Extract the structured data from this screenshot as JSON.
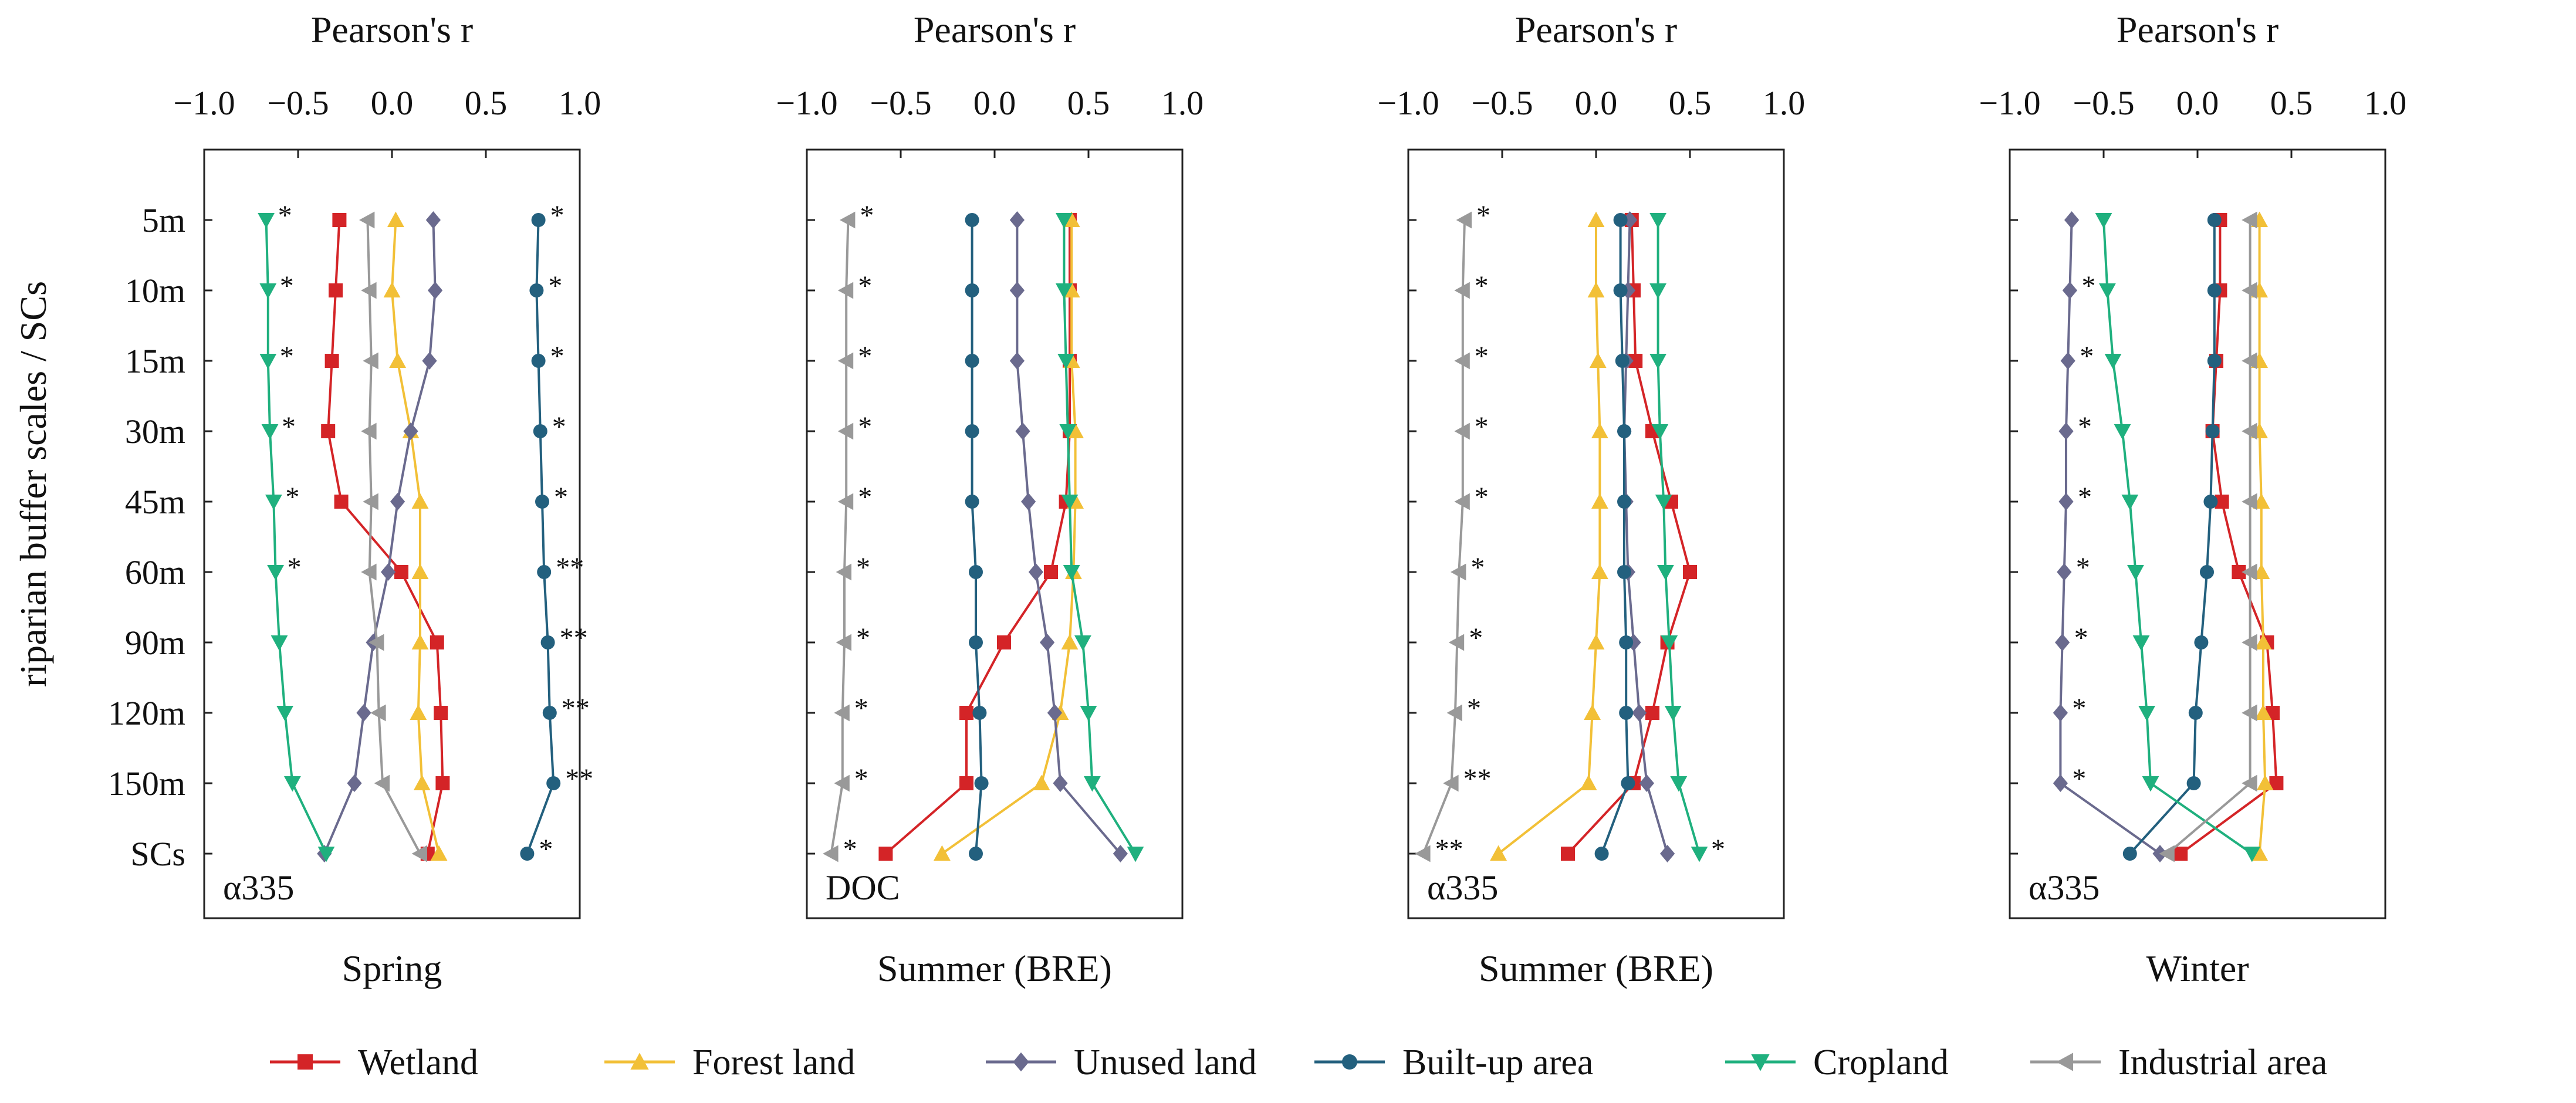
{
  "figure": {
    "y_axis_label": "riparian buffer scales / SCs",
    "scales": [
      "5m",
      "10m",
      "15m",
      "30m",
      "45m",
      "60m",
      "90m",
      "120m",
      "150m",
      "SCs"
    ],
    "x_axis_title": "Pearson's r",
    "x_ticks": [
      -1.0,
      -0.5,
      0.0,
      0.5,
      1.0
    ],
    "x_tick_labels": [
      "−1.0",
      "−0.5",
      "0.0",
      "0.5",
      "1.0"
    ]
  },
  "legend": [
    {
      "name": "Wetland",
      "color": "#d42427",
      "marker": "square"
    },
    {
      "name": "Forest land",
      "color": "#f2c037",
      "marker": "triangle-up"
    },
    {
      "name": "Unused land",
      "color": "#6a6a8e",
      "marker": "diamond"
    },
    {
      "name": "Built-up area",
      "color": "#23607e",
      "marker": "circle"
    },
    {
      "name": "Cropland",
      "color": "#1fb07e",
      "marker": "triangle-down"
    },
    {
      "name": "Industrial area",
      "color": "#999999",
      "marker": "triangle-left"
    }
  ],
  "chart_data": [
    {
      "type": "line",
      "title": "Pearson's r",
      "caption": "Spring",
      "panel_label": "α335",
      "xlabel": "Pearson's r",
      "ylabel": "riparian buffer scales / SCs",
      "xlim": [
        -1.0,
        1.0
      ],
      "y_categories": [
        "5m",
        "10m",
        "15m",
        "30m",
        "45m",
        "60m",
        "90m",
        "120m",
        "150m",
        "SCs"
      ],
      "series": [
        {
          "name": "Wetland",
          "values": [
            -0.28,
            -0.3,
            -0.32,
            -0.34,
            -0.27,
            0.05,
            0.24,
            0.26,
            0.27,
            0.19
          ],
          "stars": [
            "",
            "",
            "",
            "",
            "",
            "",
            "",
            "",
            "",
            ""
          ]
        },
        {
          "name": "Forest land",
          "values": [
            0.02,
            0.0,
            0.03,
            0.1,
            0.15,
            0.15,
            0.15,
            0.14,
            0.16,
            0.25
          ],
          "stars": [
            "",
            "",
            "",
            "",
            "",
            "",
            "",
            "",
            "",
            ""
          ]
        },
        {
          "name": "Unused land",
          "values": [
            0.22,
            0.23,
            0.2,
            0.1,
            0.03,
            -0.02,
            -0.1,
            -0.15,
            -0.2,
            -0.36
          ],
          "stars": [
            "",
            "",
            "",
            "",
            "",
            "",
            "",
            "",
            "",
            ""
          ]
        },
        {
          "name": "Built-up area",
          "values": [
            0.78,
            0.77,
            0.78,
            0.79,
            0.8,
            0.81,
            0.83,
            0.84,
            0.86,
            0.72
          ],
          "stars": [
            "*",
            "*",
            "*",
            "*",
            "*",
            "**",
            "**",
            "**",
            "**",
            "*"
          ]
        },
        {
          "name": "Cropland",
          "values": [
            -0.67,
            -0.66,
            -0.66,
            -0.65,
            -0.63,
            -0.62,
            -0.6,
            -0.57,
            -0.53,
            -0.35
          ],
          "stars": [
            "*",
            "*",
            "*",
            "*",
            "*",
            "*",
            "",
            "",
            "",
            ""
          ]
        },
        {
          "name": "Industrial area",
          "values": [
            -0.13,
            -0.12,
            -0.11,
            -0.12,
            -0.11,
            -0.12,
            -0.08,
            -0.07,
            -0.05,
            0.15
          ],
          "stars": [
            "",
            "",
            "",
            "",
            "",
            "",
            "",
            "",
            "",
            ""
          ]
        }
      ]
    },
    {
      "type": "line",
      "title": "Pearson's r",
      "caption": "Summer (BRE)",
      "panel_label": "DOC",
      "xlabel": "Pearson's r",
      "ylabel": "riparian buffer scales / SCs",
      "xlim": [
        -1.0,
        1.0
      ],
      "y_categories": [
        "5m",
        "10m",
        "15m",
        "30m",
        "45m",
        "60m",
        "90m",
        "120m",
        "150m",
        "SCs"
      ],
      "series": [
        {
          "name": "Wetland",
          "values": [
            0.4,
            0.4,
            0.4,
            0.4,
            0.38,
            0.3,
            0.05,
            -0.15,
            -0.15,
            -0.58
          ],
          "stars": [
            "",
            "",
            "",
            "",
            "",
            "",
            "",
            "",
            "",
            ""
          ]
        },
        {
          "name": "Forest land",
          "values": [
            0.41,
            0.41,
            0.41,
            0.43,
            0.43,
            0.42,
            0.4,
            0.35,
            0.25,
            -0.28
          ],
          "stars": [
            "",
            "",
            "",
            "",
            "",
            "",
            "",
            "",
            "",
            ""
          ]
        },
        {
          "name": "Unused land",
          "values": [
            0.12,
            0.12,
            0.12,
            0.15,
            0.18,
            0.22,
            0.28,
            0.32,
            0.35,
            0.67
          ],
          "stars": [
            "",
            "",
            "",
            "",
            "",
            "",
            "",
            "",
            "",
            ""
          ]
        },
        {
          "name": "Built-up area",
          "values": [
            -0.12,
            -0.12,
            -0.12,
            -0.12,
            -0.12,
            -0.1,
            -0.1,
            -0.08,
            -0.07,
            -0.1
          ],
          "stars": [
            "",
            "",
            "",
            "",
            "",
            "",
            "",
            "",
            "",
            ""
          ]
        },
        {
          "name": "Cropland",
          "values": [
            0.37,
            0.37,
            0.38,
            0.39,
            0.4,
            0.41,
            0.47,
            0.5,
            0.52,
            0.75
          ],
          "stars": [
            "",
            "",
            "",
            "",
            "",
            "",
            "",
            "",
            "",
            ""
          ]
        },
        {
          "name": "Industrial area",
          "values": [
            -0.78,
            -0.79,
            -0.79,
            -0.79,
            -0.79,
            -0.8,
            -0.8,
            -0.81,
            -0.81,
            -0.87
          ],
          "stars": [
            "*",
            "*",
            "*",
            "*",
            "*",
            "*",
            "*",
            "*",
            "*",
            "*"
          ]
        }
      ]
    },
    {
      "type": "line",
      "title": "Pearson's r",
      "caption": "Summer (BRE)",
      "panel_label": "α335",
      "xlabel": "Pearson's r",
      "ylabel": "riparian buffer scales / SCs",
      "xlim": [
        -1.0,
        1.0
      ],
      "y_categories": [
        "5m",
        "10m",
        "15m",
        "30m",
        "45m",
        "60m",
        "90m",
        "120m",
        "150m",
        "SCs"
      ],
      "series": [
        {
          "name": "Wetland",
          "values": [
            0.19,
            0.2,
            0.21,
            0.3,
            0.4,
            0.5,
            0.38,
            0.3,
            0.2,
            -0.15
          ],
          "stars": [
            "",
            "",
            "",
            "",
            "",
            "",
            "",
            "",
            "",
            ""
          ]
        },
        {
          "name": "Forest land",
          "values": [
            0.0,
            0.0,
            0.01,
            0.02,
            0.02,
            0.02,
            0.0,
            -0.02,
            -0.04,
            -0.52
          ],
          "stars": [
            "",
            "",
            "",
            "",
            "",
            "",
            "",
            "",
            "",
            ""
          ]
        },
        {
          "name": "Unused land",
          "values": [
            0.18,
            0.17,
            0.16,
            0.15,
            0.16,
            0.17,
            0.2,
            0.23,
            0.27,
            0.38
          ],
          "stars": [
            "",
            "",
            "",
            "",
            "",
            "",
            "",
            "",
            "",
            ""
          ]
        },
        {
          "name": "Built-up area",
          "values": [
            0.13,
            0.13,
            0.14,
            0.15,
            0.15,
            0.15,
            0.16,
            0.16,
            0.17,
            0.03
          ],
          "stars": [
            "",
            "",
            "",
            "",
            "",
            "",
            "",
            "",
            "",
            ""
          ]
        },
        {
          "name": "Cropland",
          "values": [
            0.33,
            0.33,
            0.33,
            0.34,
            0.36,
            0.37,
            0.39,
            0.41,
            0.44,
            0.55
          ],
          "stars": [
            "",
            "",
            "",
            "",
            "",
            "",
            "",
            "",
            "",
            "*"
          ]
        },
        {
          "name": "Industrial area",
          "values": [
            -0.7,
            -0.71,
            -0.71,
            -0.71,
            -0.71,
            -0.73,
            -0.74,
            -0.75,
            -0.77,
            -0.92
          ],
          "stars": [
            "*",
            "*",
            "*",
            "*",
            "*",
            "*",
            "*",
            "*",
            "**",
            "**"
          ]
        }
      ]
    },
    {
      "type": "line",
      "title": "Pearson's r",
      "caption": "Winter",
      "panel_label": "α335",
      "xlabel": "Pearson's r",
      "ylabel": "riparian buffer scales / SCs",
      "xlim": [
        -1.0,
        1.0
      ],
      "y_categories": [
        "5m",
        "10m",
        "15m",
        "30m",
        "45m",
        "60m",
        "90m",
        "120m",
        "150m",
        "SCs"
      ],
      "series": [
        {
          "name": "Wetland",
          "values": [
            0.12,
            0.12,
            0.1,
            0.08,
            0.13,
            0.22,
            0.37,
            0.4,
            0.42,
            -0.09
          ],
          "stars": [
            "",
            "",
            "",
            "",
            "",
            "",
            "",
            "",
            "",
            ""
          ]
        },
        {
          "name": "Forest land",
          "values": [
            0.33,
            0.33,
            0.33,
            0.33,
            0.34,
            0.34,
            0.35,
            0.35,
            0.36,
            0.33
          ],
          "stars": [
            "",
            "",
            "",
            "",
            "",
            "",
            "",
            "",
            "",
            ""
          ]
        },
        {
          "name": "Unused land",
          "values": [
            -0.67,
            -0.68,
            -0.69,
            -0.7,
            -0.7,
            -0.71,
            -0.72,
            -0.73,
            -0.73,
            -0.2
          ],
          "stars": [
            "",
            "*",
            "*",
            "*",
            "*",
            "*",
            "*",
            "*",
            "*",
            ""
          ]
        },
        {
          "name": "Built-up area",
          "values": [
            0.09,
            0.09,
            0.09,
            0.08,
            0.07,
            0.05,
            0.02,
            -0.01,
            -0.02,
            -0.36
          ],
          "stars": [
            "",
            "",
            "",
            "",
            "",
            "",
            "",
            "",
            "",
            ""
          ]
        },
        {
          "name": "Cropland",
          "values": [
            -0.5,
            -0.48,
            -0.45,
            -0.4,
            -0.36,
            -0.33,
            -0.3,
            -0.27,
            -0.25,
            0.29
          ],
          "stars": [
            "",
            "",
            "",
            "",
            "",
            "",
            "",
            "",
            "",
            ""
          ]
        },
        {
          "name": "Industrial area",
          "values": [
            0.28,
            0.28,
            0.28,
            0.28,
            0.28,
            0.28,
            0.28,
            0.28,
            0.28,
            -0.16
          ],
          "stars": [
            "",
            "",
            "",
            "",
            "",
            "",
            "",
            "",
            "",
            ""
          ]
        }
      ]
    }
  ]
}
